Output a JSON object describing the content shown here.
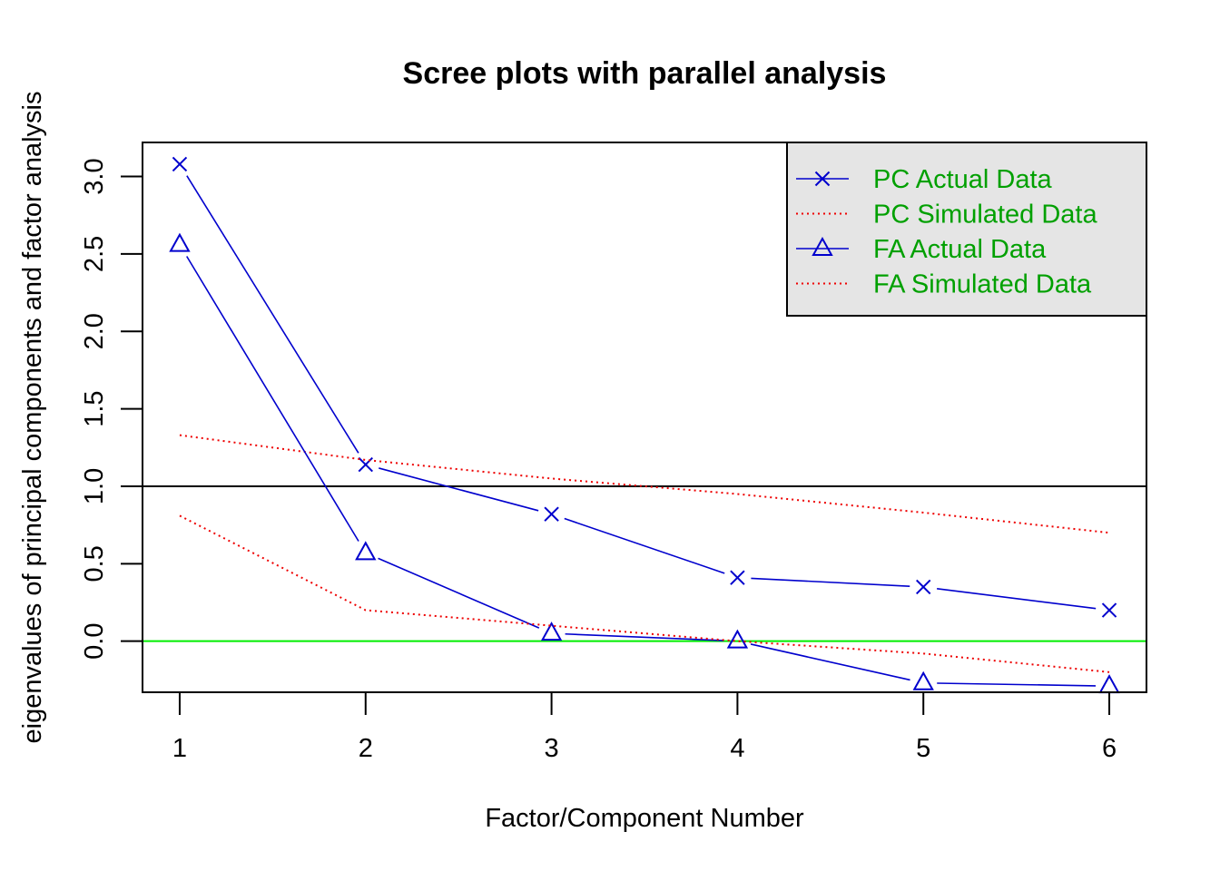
{
  "chart_data": {
    "type": "line",
    "title": "Scree plots with parallel analysis",
    "xlabel": "Factor/Component Number",
    "ylabel": "eigenvalues of principal components and factor analysis",
    "x": [
      1,
      2,
      3,
      4,
      5,
      6
    ],
    "x_ticks": [
      "1",
      "2",
      "3",
      "4",
      "5",
      "6"
    ],
    "y_ticks": [
      "0.0",
      "0.5",
      "1.0",
      "1.5",
      "2.0",
      "2.5",
      "3.0"
    ],
    "xlim": [
      0.8,
      6.2
    ],
    "ylim": [
      -0.33,
      3.22
    ],
    "grid": false,
    "reference_lines": [
      {
        "y": 1.0,
        "color": "#000000"
      },
      {
        "y": 0.0,
        "color": "#00ee00"
      }
    ],
    "series": [
      {
        "name": "PC  Actual Data",
        "values": [
          3.08,
          1.14,
          0.82,
          0.41,
          0.35,
          0.2
        ],
        "color": "#0000cd",
        "style": "solid",
        "marker": "cross"
      },
      {
        "name": " PC  Simulated Data",
        "values": [
          1.33,
          1.17,
          1.05,
          0.95,
          0.83,
          0.7
        ],
        "color": "#ee0000",
        "style": "dotted",
        "marker": "none"
      },
      {
        "name": "FA  Actual Data",
        "values": [
          2.56,
          0.57,
          0.05,
          0.0,
          -0.27,
          -0.29
        ],
        "color": "#0000cd",
        "style": "solid",
        "marker": "triangle"
      },
      {
        "name": " FA  Simulated Data",
        "values": [
          0.81,
          0.2,
          0.1,
          0.0,
          -0.08,
          -0.2
        ],
        "color": "#ee0000",
        "style": "dotted",
        "marker": "none"
      }
    ],
    "legend": {
      "position": "top-right",
      "background": "#e5e5e5",
      "text_color": "#00a000"
    }
  }
}
